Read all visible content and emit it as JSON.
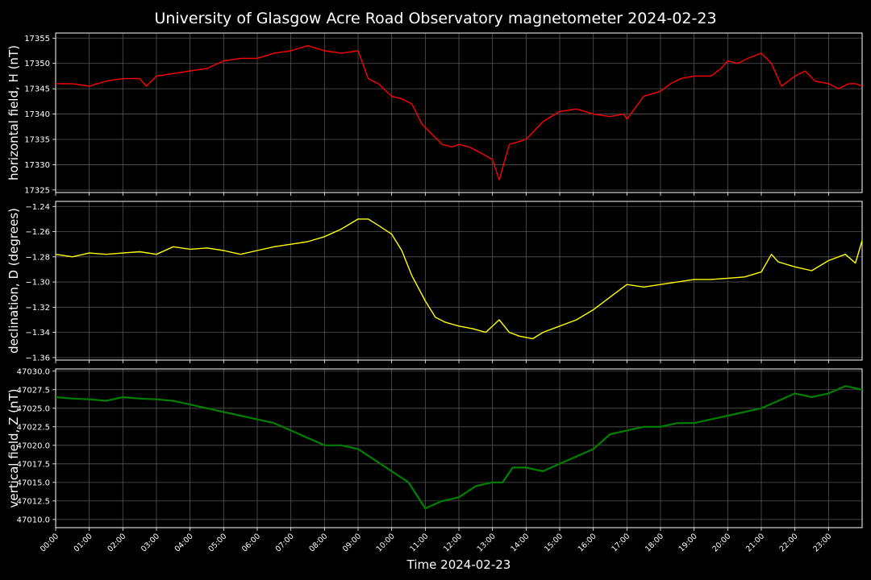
{
  "title": "University of Glasgow Acre Road Observatory magnetometer 2024-02-23",
  "xlabel": "Time 2024-02-23",
  "x_ticks": [
    "00:00",
    "01:00",
    "02:00",
    "03:00",
    "04:00",
    "05:00",
    "06:00",
    "07:00",
    "08:00",
    "09:00",
    "10:00",
    "11:00",
    "12:00",
    "13:00",
    "14:00",
    "15:00",
    "16:00",
    "17:00",
    "18:00",
    "19:00",
    "20:00",
    "21:00",
    "22:00",
    "23:00"
  ],
  "colors": {
    "background": "#000000",
    "grid": "#555555",
    "text": "#ffffff"
  },
  "chart_data": [
    {
      "type": "line",
      "ylabel": "horizontal field, H (nT)",
      "color": "#ff0000",
      "ylim": [
        17324.5,
        17356
      ],
      "y_ticks": [
        "17325",
        "17330",
        "17335",
        "17340",
        "17345",
        "17350",
        "17355"
      ],
      "x_hours": [
        0,
        0.5,
        1,
        1.5,
        2,
        2.5,
        2.7,
        3,
        3.5,
        4,
        4.5,
        5,
        5.5,
        6,
        6.5,
        7,
        7.5,
        8,
        8.5,
        9,
        9.3,
        9.6,
        10,
        10.3,
        10.6,
        10.9,
        11.2,
        11.5,
        11.8,
        12,
        12.3,
        12.6,
        13,
        13.2,
        13.5,
        14,
        14.5,
        15,
        15.5,
        16,
        16.5,
        16.9,
        17,
        17.5,
        18,
        18.3,
        18.6,
        19,
        19.5,
        19.8,
        20,
        20.3,
        20.6,
        21,
        21.3,
        21.6,
        22,
        22.3,
        22.6,
        23,
        23.3,
        23.6,
        23.8,
        24
      ],
      "values": [
        17346,
        17346,
        17345.5,
        17346.5,
        17347,
        17347,
        17345.5,
        17347.5,
        17348,
        17348.5,
        17349,
        17350.5,
        17351,
        17351,
        17352,
        17352.5,
        17353.5,
        17352.5,
        17352,
        17352.5,
        17347,
        17346,
        17343.5,
        17343,
        17342,
        17338,
        17336,
        17334,
        17333.5,
        17334,
        17333.5,
        17332.5,
        17331,
        17327,
        17334,
        17335,
        17338.5,
        17340.5,
        17341,
        17340,
        17339.5,
        17340,
        17339,
        17343.5,
        17344.5,
        17346,
        17347,
        17347.5,
        17347.5,
        17349,
        17350.5,
        17350,
        17351,
        17352,
        17350,
        17345.5,
        17347.5,
        17348.5,
        17346.5,
        17346,
        17345,
        17346,
        17346,
        17345.5
      ]
    },
    {
      "type": "line",
      "ylabel": "declination, D (degrees)",
      "color": "#ffff00",
      "ylim": [
        -1.362,
        -1.236
      ],
      "y_ticks": [
        "−1.24",
        "−1.26",
        "−1.28",
        "−1.30",
        "−1.32",
        "−1.34",
        "−1.36"
      ],
      "x_hours": [
        0,
        0.5,
        1,
        1.5,
        2,
        2.5,
        3,
        3.5,
        4,
        4.5,
        5,
        5.5,
        6,
        6.5,
        7,
        7.5,
        8,
        8.5,
        9,
        9.3,
        9.6,
        10,
        10.3,
        10.6,
        11,
        11.3,
        11.6,
        12,
        12.4,
        12.8,
        13.2,
        13.5,
        13.8,
        14.2,
        14.5,
        15,
        15.5,
        16,
        16.5,
        17,
        17.5,
        18,
        18.5,
        19,
        19.5,
        20,
        20.5,
        21,
        21.3,
        21.5,
        22,
        22.5,
        23,
        23.5,
        23.8,
        24
      ],
      "values": [
        -1.278,
        -1.28,
        -1.277,
        -1.278,
        -1.277,
        -1.276,
        -1.278,
        -1.272,
        -1.274,
        -1.273,
        -1.275,
        -1.278,
        -1.275,
        -1.272,
        -1.27,
        -1.268,
        -1.264,
        -1.258,
        -1.25,
        -1.25,
        -1.255,
        -1.262,
        -1.275,
        -1.295,
        -1.315,
        -1.328,
        -1.332,
        -1.335,
        -1.337,
        -1.34,
        -1.33,
        -1.34,
        -1.343,
        -1.345,
        -1.34,
        -1.335,
        -1.33,
        -1.322,
        -1.312,
        -1.302,
        -1.304,
        -1.302,
        -1.3,
        -1.298,
        -1.298,
        -1.297,
        -1.296,
        -1.292,
        -1.278,
        -1.284,
        -1.288,
        -1.291,
        -1.283,
        -1.278,
        -1.285,
        -1.267
      ]
    },
    {
      "type": "line",
      "ylabel": "vertical field, Z (nT)",
      "color": "#008000",
      "ylim": [
        47008.9,
        47030.3
      ],
      "y_ticks": [
        "47010.0",
        "47012.5",
        "47015.0",
        "47017.5",
        "47020.0",
        "47022.5",
        "47025.0",
        "47027.5",
        "47030.0"
      ],
      "x_hours": [
        0,
        0.5,
        1,
        1.5,
        2,
        2.5,
        3,
        3.5,
        4,
        4.5,
        5,
        5.5,
        6,
        6.5,
        7,
        7.5,
        8,
        8.5,
        9,
        9.5,
        10,
        10.5,
        11,
        11.5,
        12,
        12.5,
        13,
        13.3,
        13.6,
        14,
        14.5,
        15,
        15.5,
        16,
        16.5,
        17,
        17.5,
        18,
        18.5,
        19,
        19.5,
        20,
        20.5,
        21,
        21.5,
        22,
        22.5,
        23,
        23.5,
        24
      ],
      "values": [
        47026.5,
        47026.3,
        47026.2,
        47026,
        47026.5,
        47026.3,
        47026.2,
        47026,
        47025.5,
        47025,
        47024.5,
        47024,
        47023.5,
        47023,
        47022,
        47021,
        47020,
        47020,
        47019.5,
        47018,
        47016.5,
        47015,
        47011.5,
        47012.5,
        47013,
        47014.5,
        47015,
        47015,
        47017,
        47017,
        47016.5,
        47017.5,
        47018.5,
        47019.5,
        47021.5,
        47022,
        47022.5,
        47022.5,
        47023,
        47023,
        47023.5,
        47024,
        47024.5,
        47025,
        47026,
        47027,
        47026.5,
        47027,
        47028,
        47027.5
      ]
    }
  ]
}
